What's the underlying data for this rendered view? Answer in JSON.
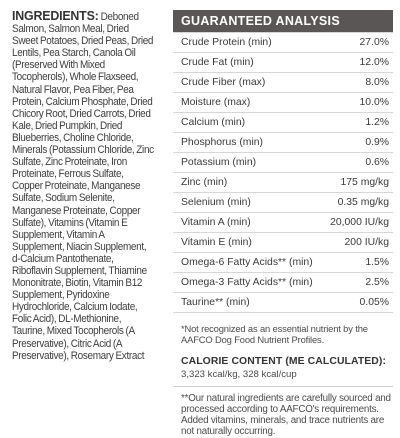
{
  "ingredients": {
    "heading": "INGREDIENTS:",
    "text": "Deboned Salmon, Salmon Meal, Dried Sweet Potatoes, Dried Peas, Dried Lentils, Pea Starch, Canola Oil (Preserved With Mixed Tocopherols), Whole Flaxseed, Natural Flavor, Pea Fiber, Pea Protein, Calcium Phosphate, Dried Chicory Root, Dried Carrots, Dried Kale, Dried Pumpkin, Dried Blueberries, Choline Chloride, Minerals (Potassium Chloride, Zinc Sulfate, Zinc Proteinate, Iron Proteinate, Ferrous Sulfate, Copper Proteinate, Manganese Sulfate, Sodium Selenite, Manganese Proteinate, Copper Sulfate), Vitamins (Vitamin E Supplement, Vitamin A Supplement, Niacin Supplement, d-Calcium Pantothenate, Riboflavin Supplement, Thiamine Mononitrate, Biotin, Vitamin B12 Supplement, Pyridoxine Hydrochloride, Calcium Iodate, Folic Acid), DL-Methionine, Taurine, Mixed Tocopherols (A Preservative), Citric Acid (A Preservative), Rosemary Extract"
  },
  "analysis": {
    "heading": "GUARANTEED ANALYSIS",
    "rows": [
      {
        "name": "Crude Protein (min)",
        "value": "27.0%"
      },
      {
        "name": "Crude Fat (min)",
        "value": "12.0%"
      },
      {
        "name": "Crude Fiber (max)",
        "value": "8.0%"
      },
      {
        "name": "Moisture (max)",
        "value": "10.0%"
      },
      {
        "name": "Calcium (min)",
        "value": "1.2%"
      },
      {
        "name": "Phosphorus (min)",
        "value": "0.9%"
      },
      {
        "name": "Potassium (min)",
        "value": "0.6%"
      },
      {
        "name": "Zinc (min)",
        "value": "175 mg/kg"
      },
      {
        "name": "Selenium (min)",
        "value": "0.35 mg/kg"
      },
      {
        "name": "Vitamin A (min)",
        "value": "20,000 IU/kg"
      },
      {
        "name": "Vitamin E (min)",
        "value": "200 IU/kg"
      },
      {
        "name": "Omega-6 Fatty Acids** (min)",
        "value": "1.5%"
      },
      {
        "name": "Omega-3 Fatty Acids** (min)",
        "value": "2.5%"
      },
      {
        "name": "Taurine** (min)",
        "value": "0.05%"
      }
    ],
    "footnote": "*Not recognized as an essential nutrient by the AAFCO Dog Food Nutrient Profiles.",
    "calorie_heading": "CALORIE CONTENT (ME CALCULATED):",
    "calorie_value": "3,323 kcal/kg, 328 kcal/cup",
    "natural_note": "**Our natural ingredients are carefully sourced and processed according to AAFCO's requirements. Added vitamins, minerals, and trace nutrients are not naturally occurring."
  },
  "colors": {
    "header_background": "#5b5656",
    "header_text": "#ffffff",
    "body_text": "#3a3a3a",
    "row_border": "#d6d6d6"
  }
}
